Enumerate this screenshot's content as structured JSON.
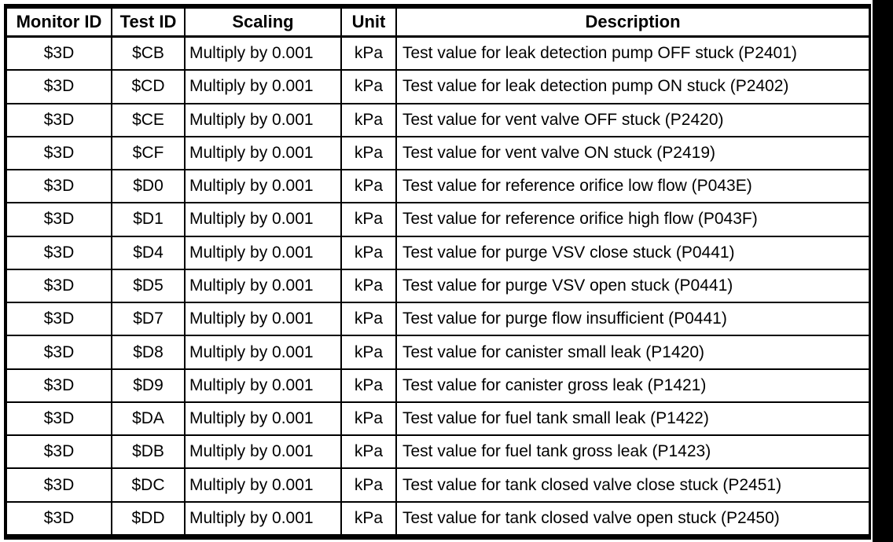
{
  "colors": {
    "text": "#000000",
    "background": "#ffffff",
    "border": "#000000"
  },
  "table": {
    "columns": [
      {
        "key": "monitor_id",
        "label": "Monitor ID"
      },
      {
        "key": "test_id",
        "label": "Test ID"
      },
      {
        "key": "scaling",
        "label": "Scaling"
      },
      {
        "key": "unit",
        "label": "Unit"
      },
      {
        "key": "description",
        "label": "Description"
      }
    ],
    "rows": [
      {
        "monitor_id": "$3D",
        "test_id": "$CB",
        "scaling": "Multiply by 0.001",
        "unit": "kPa",
        "description": "Test value for leak detection pump OFF stuck (P2401)"
      },
      {
        "monitor_id": "$3D",
        "test_id": "$CD",
        "scaling": "Multiply by 0.001",
        "unit": "kPa",
        "description": "Test value for leak detection pump ON stuck (P2402)"
      },
      {
        "monitor_id": "$3D",
        "test_id": "$CE",
        "scaling": "Multiply by 0.001",
        "unit": "kPa",
        "description": "Test value for vent valve OFF stuck (P2420)"
      },
      {
        "monitor_id": "$3D",
        "test_id": "$CF",
        "scaling": "Multiply by 0.001",
        "unit": "kPa",
        "description": "Test value for vent valve ON stuck (P2419)"
      },
      {
        "monitor_id": "$3D",
        "test_id": "$D0",
        "scaling": "Multiply by 0.001",
        "unit": "kPa",
        "description": "Test value for reference orifice low flow (P043E)"
      },
      {
        "monitor_id": "$3D",
        "test_id": "$D1",
        "scaling": "Multiply by 0.001",
        "unit": "kPa",
        "description": "Test value for reference orifice high flow (P043F)"
      },
      {
        "monitor_id": "$3D",
        "test_id": "$D4",
        "scaling": "Multiply by 0.001",
        "unit": "kPa",
        "description": "Test value for purge VSV close stuck (P0441)"
      },
      {
        "monitor_id": "$3D",
        "test_id": "$D5",
        "scaling": "Multiply by 0.001",
        "unit": "kPa",
        "description": "Test value for purge VSV open stuck (P0441)"
      },
      {
        "monitor_id": "$3D",
        "test_id": "$D7",
        "scaling": "Multiply by 0.001",
        "unit": "kPa",
        "description": "Test value for purge flow insufficient (P0441)"
      },
      {
        "monitor_id": "$3D",
        "test_id": "$D8",
        "scaling": "Multiply by 0.001",
        "unit": "kPa",
        "description": "Test value for canister small leak (P1420)"
      },
      {
        "monitor_id": "$3D",
        "test_id": "$D9",
        "scaling": "Multiply by 0.001",
        "unit": "kPa",
        "description": "Test value for canister gross leak (P1421)"
      },
      {
        "monitor_id": "$3D",
        "test_id": "$DA",
        "scaling": "Multiply by 0.001",
        "unit": "kPa",
        "description": "Test value for fuel tank small leak (P1422)"
      },
      {
        "monitor_id": "$3D",
        "test_id": "$DB",
        "scaling": "Multiply by 0.001",
        "unit": "kPa",
        "description": "Test value for fuel tank gross leak (P1423)"
      },
      {
        "monitor_id": "$3D",
        "test_id": "$DC",
        "scaling": "Multiply by 0.001",
        "unit": "kPa",
        "description": "Test value for tank closed valve close stuck (P2451)"
      },
      {
        "monitor_id": "$3D",
        "test_id": "$DD",
        "scaling": "Multiply by 0.001",
        "unit": "kPa",
        "description": "Test value for tank closed valve open stuck (P2450)"
      }
    ]
  }
}
